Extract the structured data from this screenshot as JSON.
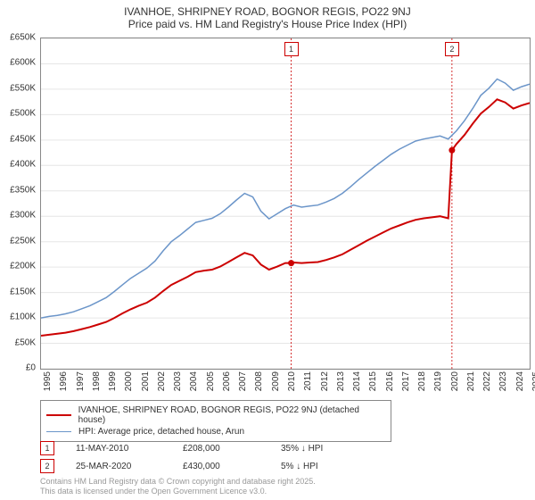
{
  "title": "IVANHOE, SHRIPNEY ROAD, BOGNOR REGIS, PO22 9NJ",
  "subtitle": "Price paid vs. HM Land Registry's House Price Index (HPI)",
  "chart": {
    "type": "line",
    "background_color": "#ffffff",
    "border_color": "#888888",
    "grid_color": "#e6e6e6",
    "label_fontsize": 10,
    "title_fontsize": 12,
    "x": {
      "min": 1995,
      "max": 2025,
      "ticks": [
        1995,
        1996,
        1997,
        1998,
        1999,
        2000,
        2001,
        2002,
        2003,
        2004,
        2005,
        2006,
        2007,
        2008,
        2009,
        2010,
        2011,
        2012,
        2013,
        2014,
        2015,
        2016,
        2017,
        2018,
        2019,
        2020,
        2021,
        2022,
        2023,
        2024,
        2025
      ]
    },
    "y": {
      "min": 0,
      "max": 650000,
      "tick_step": 50000,
      "tick_labels": [
        "£0",
        "£50K",
        "£100K",
        "£150K",
        "£200K",
        "£250K",
        "£300K",
        "£350K",
        "£400K",
        "£450K",
        "£500K",
        "£550K",
        "£600K",
        "£650K"
      ]
    },
    "marker_lines": [
      {
        "x": 2010.36,
        "label": "1",
        "color": "#cc0000"
      },
      {
        "x": 2020.23,
        "label": "2",
        "color": "#cc0000"
      }
    ],
    "marker_points": [
      {
        "x": 2010.36,
        "y": 208000,
        "color": "#cc0000"
      },
      {
        "x": 2020.23,
        "y": 430000,
        "color": "#cc0000"
      }
    ],
    "series": [
      {
        "name": "HPI: Average price, detached house, Arun",
        "color": "#6b95c9",
        "line_width": 1.5,
        "data": [
          [
            1995,
            100000
          ],
          [
            1995.5,
            103000
          ],
          [
            1996,
            105000
          ],
          [
            1996.5,
            108000
          ],
          [
            1997,
            112000
          ],
          [
            1997.5,
            118000
          ],
          [
            1998,
            124000
          ],
          [
            1998.5,
            132000
          ],
          [
            1999,
            140000
          ],
          [
            1999.5,
            152000
          ],
          [
            2000,
            165000
          ],
          [
            2000.5,
            178000
          ],
          [
            2001,
            188000
          ],
          [
            2001.5,
            198000
          ],
          [
            2002,
            212000
          ],
          [
            2002.5,
            232000
          ],
          [
            2003,
            250000
          ],
          [
            2003.5,
            262000
          ],
          [
            2004,
            275000
          ],
          [
            2004.5,
            288000
          ],
          [
            2005,
            292000
          ],
          [
            2005.5,
            296000
          ],
          [
            2006,
            305000
          ],
          [
            2006.5,
            318000
          ],
          [
            2007,
            332000
          ],
          [
            2007.5,
            345000
          ],
          [
            2008,
            338000
          ],
          [
            2008.5,
            310000
          ],
          [
            2009,
            295000
          ],
          [
            2009.5,
            305000
          ],
          [
            2010,
            315000
          ],
          [
            2010.5,
            322000
          ],
          [
            2011,
            318000
          ],
          [
            2011.5,
            320000
          ],
          [
            2012,
            322000
          ],
          [
            2012.5,
            328000
          ],
          [
            2013,
            335000
          ],
          [
            2013.5,
            345000
          ],
          [
            2014,
            358000
          ],
          [
            2014.5,
            372000
          ],
          [
            2015,
            385000
          ],
          [
            2015.5,
            398000
          ],
          [
            2016,
            410000
          ],
          [
            2016.5,
            422000
          ],
          [
            2017,
            432000
          ],
          [
            2017.5,
            440000
          ],
          [
            2018,
            448000
          ],
          [
            2018.5,
            452000
          ],
          [
            2019,
            455000
          ],
          [
            2019.5,
            458000
          ],
          [
            2020,
            452000
          ],
          [
            2020.5,
            468000
          ],
          [
            2021,
            488000
          ],
          [
            2021.5,
            512000
          ],
          [
            2022,
            538000
          ],
          [
            2022.5,
            552000
          ],
          [
            2023,
            570000
          ],
          [
            2023.5,
            562000
          ],
          [
            2024,
            548000
          ],
          [
            2024.5,
            555000
          ],
          [
            2025,
            560000
          ]
        ]
      },
      {
        "name": "IVANHOE, SHRIPNEY ROAD, BOGNOR REGIS, PO22 9NJ (detached house)",
        "color": "#cc0000",
        "line_width": 2,
        "data": [
          [
            1995,
            65000
          ],
          [
            1995.5,
            67000
          ],
          [
            1996,
            69000
          ],
          [
            1996.5,
            71000
          ],
          [
            1997,
            74000
          ],
          [
            1997.5,
            78000
          ],
          [
            1998,
            82000
          ],
          [
            1998.5,
            87000
          ],
          [
            1999,
            92000
          ],
          [
            1999.5,
            100000
          ],
          [
            2000,
            109000
          ],
          [
            2000.5,
            117000
          ],
          [
            2001,
            124000
          ],
          [
            2001.5,
            130000
          ],
          [
            2002,
            140000
          ],
          [
            2002.5,
            153000
          ],
          [
            2003,
            165000
          ],
          [
            2003.5,
            173000
          ],
          [
            2004,
            181000
          ],
          [
            2004.5,
            190000
          ],
          [
            2005,
            193000
          ],
          [
            2005.5,
            195000
          ],
          [
            2006,
            201000
          ],
          [
            2006.5,
            210000
          ],
          [
            2007,
            219000
          ],
          [
            2007.5,
            228000
          ],
          [
            2008,
            223000
          ],
          [
            2008.5,
            205000
          ],
          [
            2009,
            195000
          ],
          [
            2009.5,
            201000
          ],
          [
            2010,
            208000
          ],
          [
            2010.36,
            208000
          ],
          [
            2010.5,
            209000
          ],
          [
            2011,
            208000
          ],
          [
            2011.5,
            209000
          ],
          [
            2012,
            210000
          ],
          [
            2012.5,
            214000
          ],
          [
            2013,
            219000
          ],
          [
            2013.5,
            225000
          ],
          [
            2014,
            234000
          ],
          [
            2014.5,
            243000
          ],
          [
            2015,
            252000
          ],
          [
            2015.5,
            260000
          ],
          [
            2016,
            268000
          ],
          [
            2016.5,
            276000
          ],
          [
            2017,
            282000
          ],
          [
            2017.5,
            288000
          ],
          [
            2018,
            293000
          ],
          [
            2018.5,
            296000
          ],
          [
            2019,
            298000
          ],
          [
            2019.5,
            300000
          ],
          [
            2020,
            296000
          ],
          [
            2020.23,
            430000
          ],
          [
            2020.5,
            442000
          ],
          [
            2021,
            460000
          ],
          [
            2021.5,
            482000
          ],
          [
            2022,
            502000
          ],
          [
            2022.5,
            515000
          ],
          [
            2023,
            530000
          ],
          [
            2023.5,
            524000
          ],
          [
            2024,
            512000
          ],
          [
            2024.5,
            518000
          ],
          [
            2025,
            523000
          ]
        ]
      }
    ]
  },
  "legend": {
    "items": [
      {
        "label": "IVANHOE, SHRIPNEY ROAD, BOGNOR REGIS, PO22 9NJ (detached house)",
        "color": "#cc0000",
        "line_width": 2
      },
      {
        "label": "HPI: Average price, detached house, Arun",
        "color": "#6b95c9",
        "line_width": 1.5
      }
    ]
  },
  "marker_table": [
    {
      "badge": "1",
      "badge_color": "#cc0000",
      "date": "11-MAY-2010",
      "price": "£208,000",
      "delta": "35% ↓ HPI"
    },
    {
      "badge": "2",
      "badge_color": "#cc0000",
      "date": "25-MAR-2020",
      "price": "£430,000",
      "delta": "5% ↓ HPI"
    }
  ],
  "footer": {
    "line1": "Contains HM Land Registry data © Crown copyright and database right 2025.",
    "line2": "This data is licensed under the Open Government Licence v3.0."
  }
}
